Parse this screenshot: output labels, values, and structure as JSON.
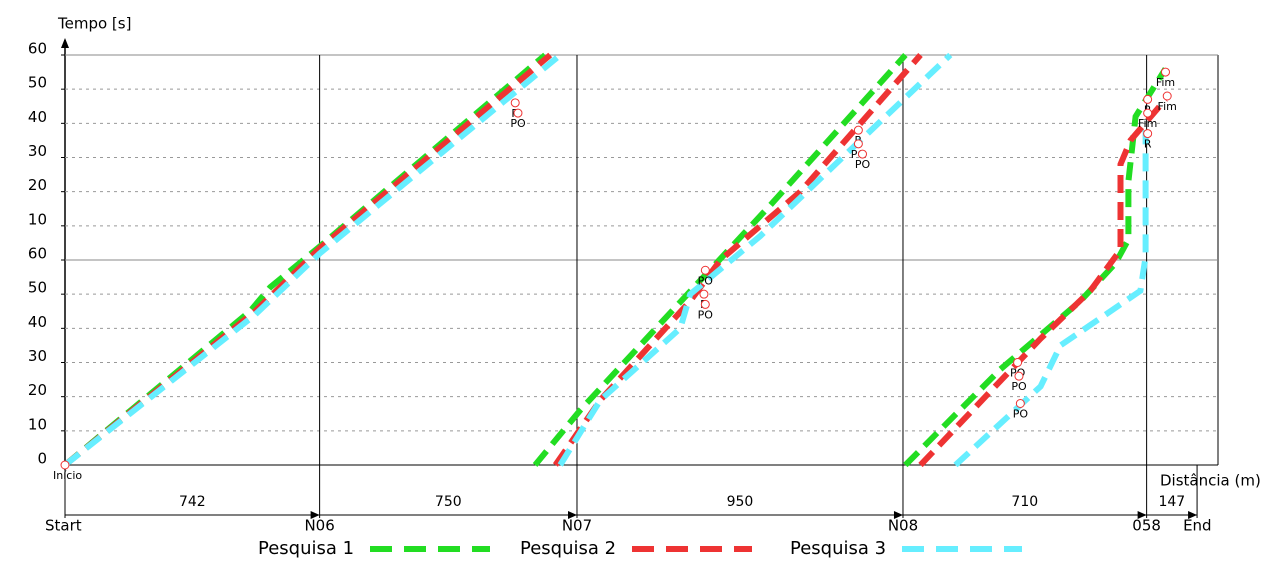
{
  "chart_data": {
    "type": "line",
    "ylabel": "Tempo [s]",
    "xlabel": "Distância  (m)",
    "xlim": [
      0,
      3360
    ],
    "ylim": [
      0,
      120
    ],
    "yticks": [
      0,
      10,
      20,
      30,
      40,
      50,
      60,
      {
        "value": 70,
        "label": "10"
      },
      {
        "value": 80,
        "label": "20"
      },
      {
        "value": 90,
        "label": "30"
      },
      {
        "value": 100,
        "label": "40"
      },
      {
        "value": 110,
        "label": "50"
      },
      {
        "value": 120,
        "label": "60"
      }
    ],
    "grid": true,
    "nodes": [
      "Start",
      "N06",
      "N07",
      "N08",
      "058",
      "End"
    ],
    "segments": [
      742,
      750,
      950,
      710,
      147
    ],
    "series": [
      {
        "name": "Pesquisa 1",
        "color": "#22dd22",
        "x": [
          0,
          539,
          598,
          743,
          1399,
          null,
          1370,
          1501,
          1851,
          2055,
          2449,
          null,
          2449,
          2726,
          2959,
          3061,
          3099,
          3099,
          3120,
          3207
        ],
        "values": [
          0,
          45,
          52,
          64,
          120,
          null,
          0,
          16,
          54,
          76,
          120,
          null,
          0,
          28,
          48,
          59,
          66,
          83,
          102,
          116
        ]
      },
      {
        "name": "Pesquisa 2",
        "color": "#ee3333",
        "x": [
          0,
          554,
          743,
          1414,
          null,
          1429,
          1560,
          1822,
          1910,
          2143,
          2493,
          null,
          2493,
          2843,
          2988,
          3076,
          3076,
          3105,
          3207
        ],
        "values": [
          0,
          45,
          63.5,
          120,
          null,
          0,
          19,
          48,
          60,
          80,
          120,
          null,
          0,
          37,
          51,
          63,
          88,
          95,
          107
        ]
      },
      {
        "name": "Pesquisa 3",
        "color": "#66eeff",
        "x": [
          0,
          554,
          743,
          1443,
          null,
          1443,
          1560,
          1793,
          1822,
          2026,
          2318,
          2580,
          null,
          2595,
          2843,
          2901,
          3134,
          3149,
          3149
        ],
        "values": [
          0,
          44,
          62,
          120,
          null,
          0,
          19,
          40,
          50,
          67,
          95,
          120,
          null,
          0,
          23,
          35,
          51,
          61,
          98
        ]
      }
    ],
    "annotations": [
      {
        "x": 0,
        "y": 0,
        "label": "Início"
      },
      {
        "x": 1312,
        "y": 106,
        "label": "R"
      },
      {
        "x": 1320,
        "y": 103,
        "label": "PO"
      },
      {
        "x": 2312,
        "y": 98,
        "label": "R"
      },
      {
        "x": 2312,
        "y": 94,
        "label": "PO"
      },
      {
        "x": 2324,
        "y": 91,
        "label": "PO"
      },
      {
        "x": 1866,
        "y": 57,
        "label": "PO"
      },
      {
        "x": 1862,
        "y": 50,
        "label": "R"
      },
      {
        "x": 1866,
        "y": 47,
        "label": "PO"
      },
      {
        "x": 2776,
        "y": 30,
        "label": "PO"
      },
      {
        "x": 2780,
        "y": 26,
        "label": "PO"
      },
      {
        "x": 2784,
        "y": 18,
        "label": "PO"
      },
      {
        "x": 3207,
        "y": 115,
        "label": "Fim"
      },
      {
        "x": 3212,
        "y": 108,
        "label": "Fim"
      },
      {
        "x": 3155,
        "y": 107,
        "label": "R"
      },
      {
        "x": 3155,
        "y": 103,
        "label": "Fim"
      },
      {
        "x": 3155,
        "y": 97,
        "label": "R"
      }
    ]
  }
}
